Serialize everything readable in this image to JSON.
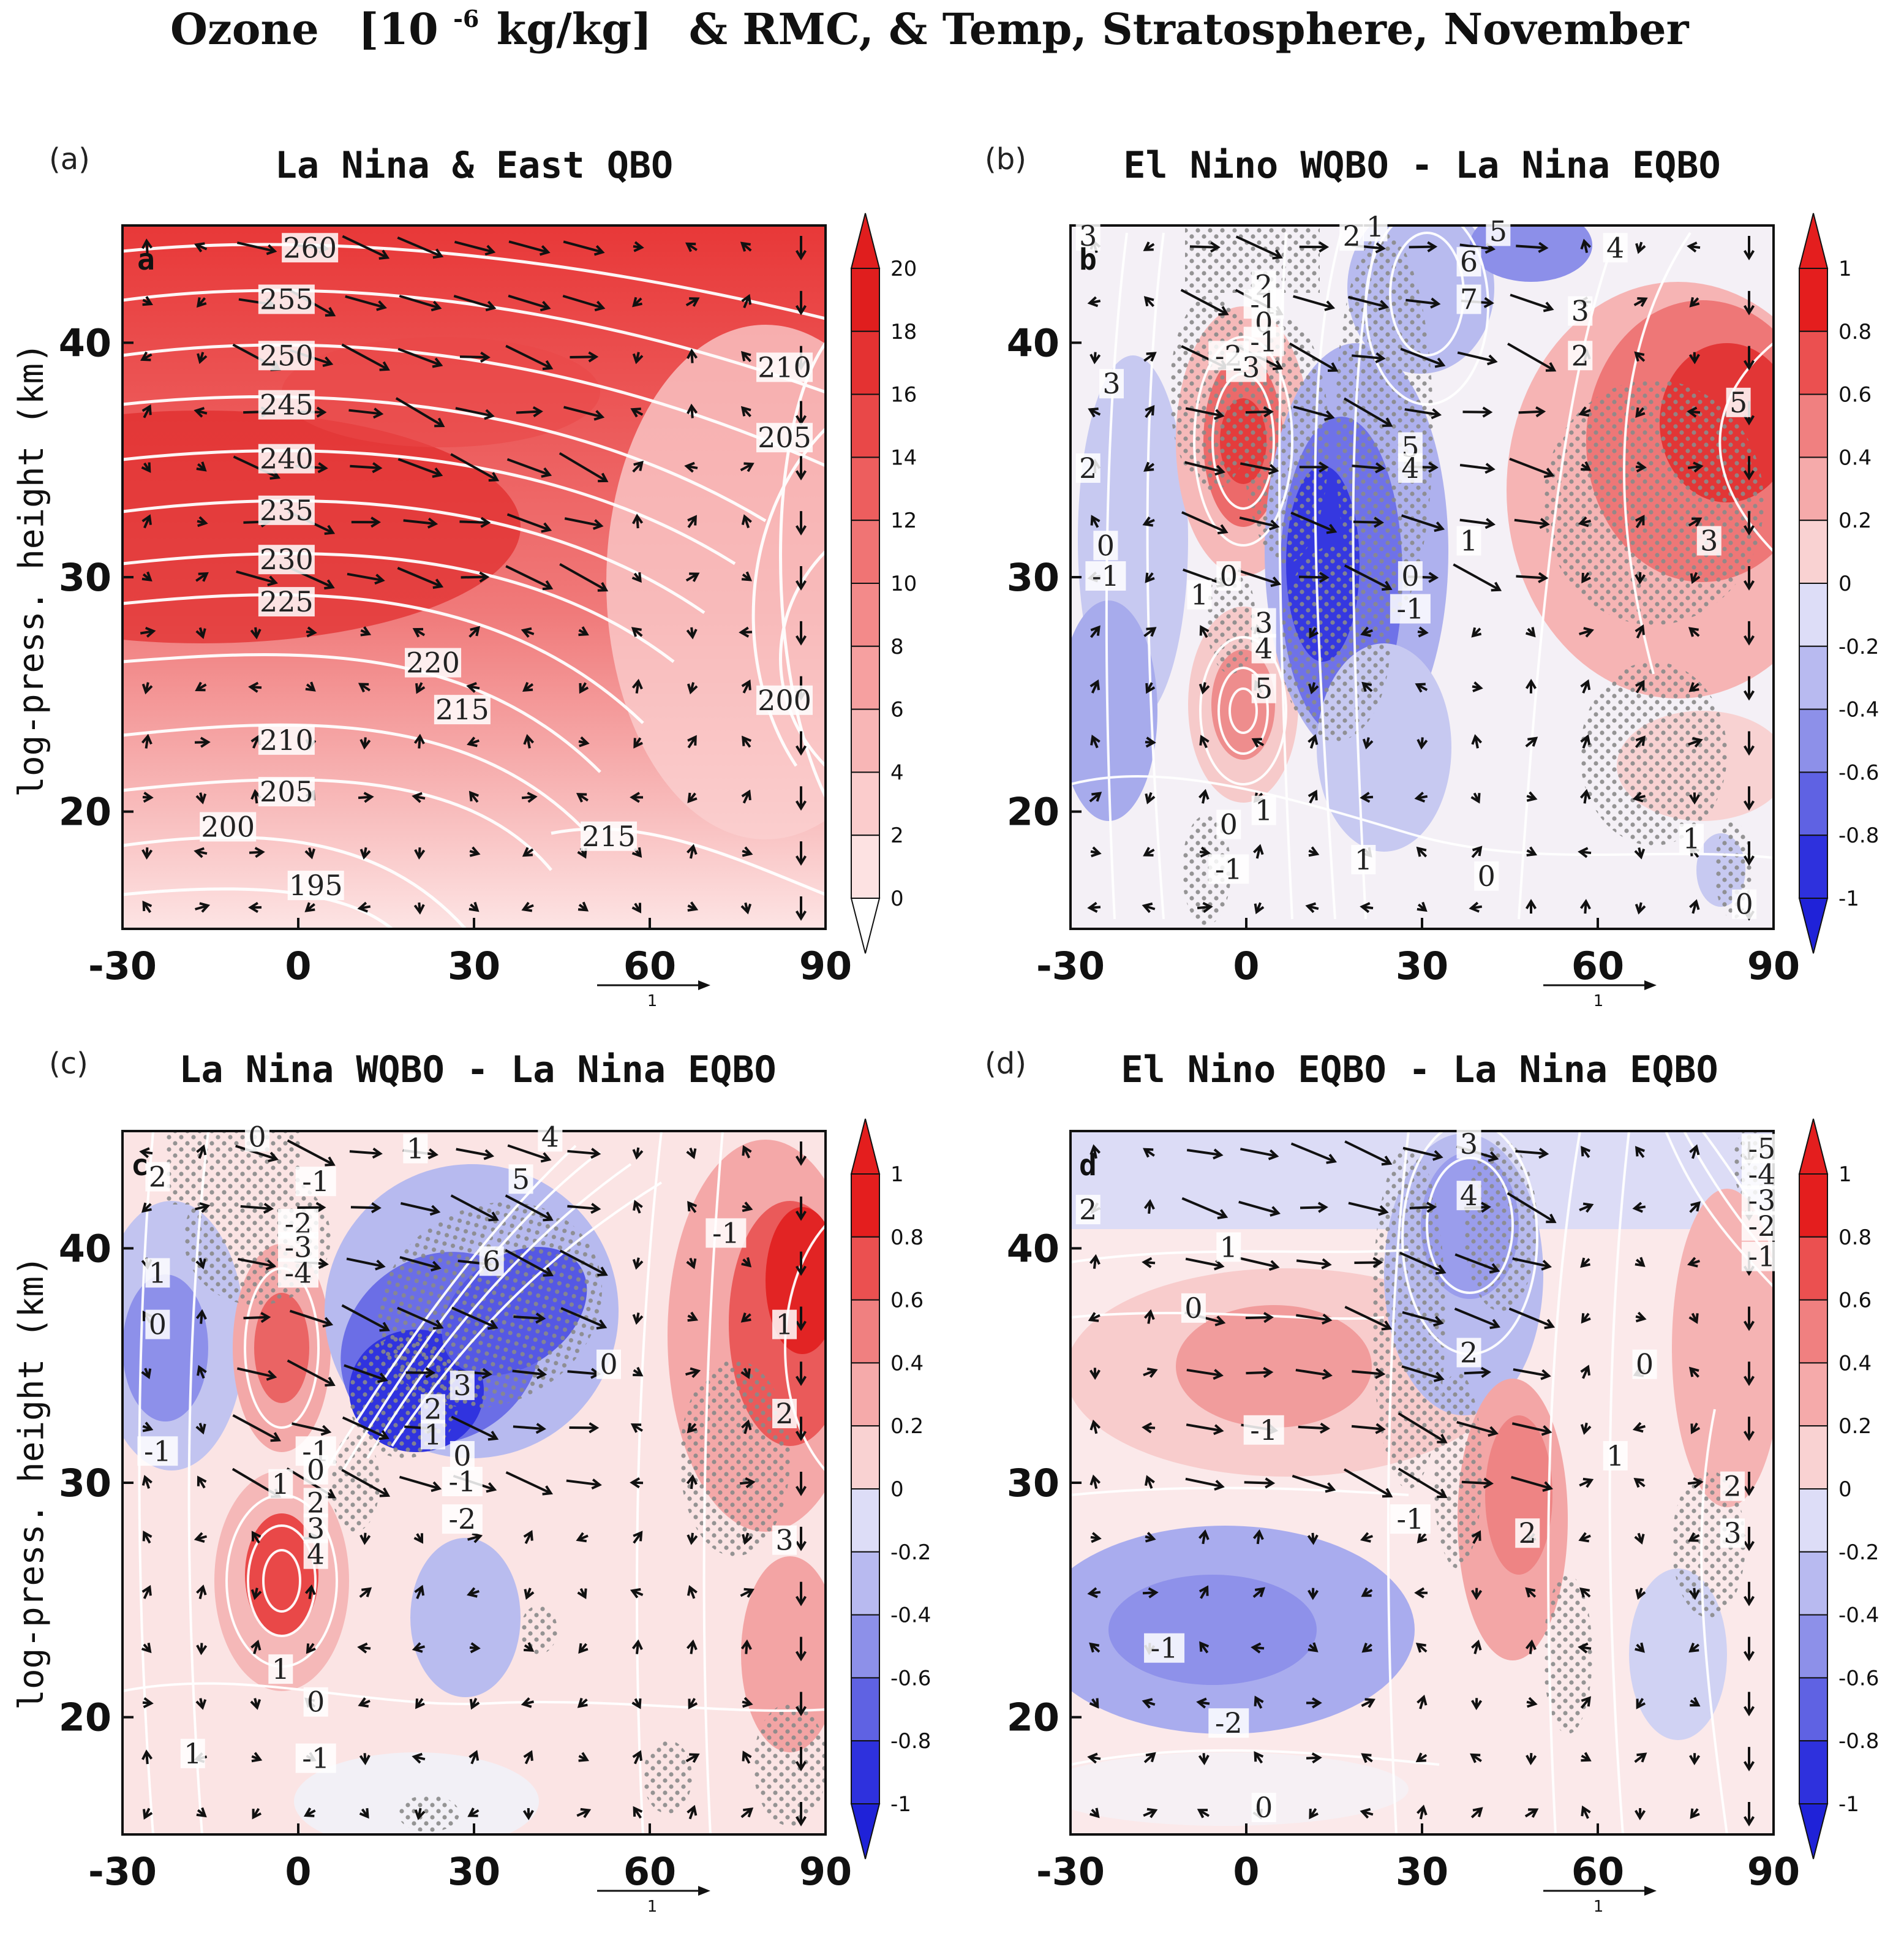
{
  "figure": {
    "title_main": "Ozone",
    "title_unit_prefix": "[10",
    "title_unit_exp": "-6",
    "title_unit_suffix": "kg/kg]",
    "title_rest": "& RMC, & Temp, Stratosphere, November",
    "ylabel": "log-press. height (km)",
    "vector_ref_label": "1"
  },
  "chart_data": [
    {
      "type": "heatmap",
      "panel_label": "(a)",
      "inner_label": "a",
      "title": "La Nina & East QBO",
      "x_ticks": [
        "-30",
        "0",
        "30",
        "60",
        "90"
      ],
      "y_ticks": [
        "20",
        "30",
        "40"
      ],
      "xlim": [
        -30,
        90
      ],
      "ylim": [
        15,
        45
      ],
      "colorbar": [
        "0",
        "2",
        "4",
        "6",
        "8",
        "10",
        "12",
        "14",
        "16",
        "18",
        "20"
      ],
      "contour_labels": [
        {
          "text": "260",
          "x": 2,
          "y": 44
        },
        {
          "text": "255",
          "x": -2,
          "y": 41.8
        },
        {
          "text": "250",
          "x": -2,
          "y": 39.4
        },
        {
          "text": "245",
          "x": -2,
          "y": 37.3
        },
        {
          "text": "240",
          "x": -2,
          "y": 35.0
        },
        {
          "text": "235",
          "x": -2,
          "y": 32.8
        },
        {
          "text": "230",
          "x": -2,
          "y": 30.7
        },
        {
          "text": "225",
          "x": -2,
          "y": 28.9
        },
        {
          "text": "220",
          "x": 23,
          "y": 26.3
        },
        {
          "text": "215",
          "x": 28,
          "y": 24.3
        },
        {
          "text": "210",
          "x": -2,
          "y": 23.0
        },
        {
          "text": "205",
          "x": -2,
          "y": 20.8
        },
        {
          "text": "200",
          "x": -12,
          "y": 19.3
        },
        {
          "text": "195",
          "x": 3,
          "y": 16.8
        },
        {
          "text": "215",
          "x": 53,
          "y": 18.9
        },
        {
          "text": "210",
          "x": 83,
          "y": 38.9
        },
        {
          "text": "205",
          "x": 83,
          "y": 35.9
        },
        {
          "text": "200",
          "x": 83,
          "y": 24.7
        }
      ]
    },
    {
      "type": "heatmap",
      "panel_label": "(b)",
      "inner_label": "b",
      "title": "El Nino WQBO - La Nina EQBO",
      "x_ticks": [
        "-30",
        "0",
        "30",
        "60",
        "90"
      ],
      "y_ticks": [
        "20",
        "30",
        "40"
      ],
      "xlim": [
        -30,
        90
      ],
      "ylim": [
        15,
        45
      ],
      "colorbar": [
        "1",
        "0.8",
        "0.6",
        "0.4",
        "0.2",
        "0",
        "-0.2",
        "-0.4",
        "-0.6",
        "-0.8",
        "-1"
      ],
      "contour_labels": [
        {
          "text": "3",
          "x": -27,
          "y": 44.5
        },
        {
          "text": "3",
          "x": -23,
          "y": 38.2
        },
        {
          "text": "2",
          "x": -27,
          "y": 34.6
        },
        {
          "text": "0",
          "x": -24,
          "y": 31.3
        },
        {
          "text": "-1",
          "x": -24,
          "y": 30.0
        },
        {
          "text": "1",
          "x": -8,
          "y": 29.2
        },
        {
          "text": "2",
          "x": 3,
          "y": 42.4
        },
        {
          "text": "-1",
          "x": 3,
          "y": 41.6
        },
        {
          "text": "0",
          "x": 3,
          "y": 40.8
        },
        {
          "text": "-1",
          "x": 3,
          "y": 40.0
        },
        {
          "text": "-2",
          "x": -3,
          "y": 39.4
        },
        {
          "text": "-3",
          "x": 0,
          "y": 38.9
        },
        {
          "text": "0",
          "x": -3,
          "y": 30.0
        },
        {
          "text": "3",
          "x": 3,
          "y": 28.0
        },
        {
          "text": "4",
          "x": 3,
          "y": 26.9
        },
        {
          "text": "5",
          "x": 3,
          "y": 25.2
        },
        {
          "text": "1",
          "x": 3,
          "y": 20.0
        },
        {
          "text": "0",
          "x": -3,
          "y": 19.4
        },
        {
          "text": "-1",
          "x": -3,
          "y": 17.5
        },
        {
          "text": "2",
          "x": 18,
          "y": 44.5
        },
        {
          "text": "1",
          "x": 22,
          "y": 44.9
        },
        {
          "text": "5",
          "x": 43,
          "y": 44.7
        },
        {
          "text": "6",
          "x": 38,
          "y": 43.4
        },
        {
          "text": "7",
          "x": 38,
          "y": 41.8
        },
        {
          "text": "4",
          "x": 63,
          "y": 44.0
        },
        {
          "text": "3",
          "x": 57,
          "y": 41.3
        },
        {
          "text": "2",
          "x": 57,
          "y": 39.4
        },
        {
          "text": "5",
          "x": 28,
          "y": 35.5
        },
        {
          "text": "4",
          "x": 28,
          "y": 34.6
        },
        {
          "text": "1",
          "x": 38,
          "y": 31.5
        },
        {
          "text": "0",
          "x": 28,
          "y": 30.0
        },
        {
          "text": "-1",
          "x": 28,
          "y": 28.6
        },
        {
          "text": "5",
          "x": 84,
          "y": 37.4
        },
        {
          "text": "3",
          "x": 79,
          "y": 31.5
        },
        {
          "text": "1",
          "x": 20,
          "y": 17.9
        },
        {
          "text": "0",
          "x": 41,
          "y": 17.2
        },
        {
          "text": "1",
          "x": 76,
          "y": 18.8
        },
        {
          "text": "0",
          "x": 85,
          "y": 16.0
        }
      ]
    },
    {
      "type": "heatmap",
      "panel_label": "(c)",
      "inner_label": "c",
      "title": "La Nina WQBO - La Nina EQBO",
      "x_ticks": [
        "-30",
        "0",
        "30",
        "60",
        "90"
      ],
      "y_ticks": [
        "20",
        "30",
        "40"
      ],
      "xlim": [
        -30,
        90
      ],
      "ylim": [
        15,
        45
      ],
      "colorbar": [
        "1",
        "0.8",
        "0.6",
        "0.4",
        "0.2",
        "0",
        "-0.2",
        "-0.4",
        "-0.6",
        "-0.8",
        "-1"
      ],
      "contour_labels": [
        {
          "text": "0",
          "x": -7,
          "y": 44.7
        },
        {
          "text": "2",
          "x": -24,
          "y": 43.0
        },
        {
          "text": "1",
          "x": -24,
          "y": 38.9
        },
        {
          "text": "0",
          "x": -24,
          "y": 36.7
        },
        {
          "text": "-1",
          "x": -24,
          "y": 31.3
        },
        {
          "text": "-1",
          "x": 3,
          "y": 42.8
        },
        {
          "text": "-2",
          "x": 0,
          "y": 41.0
        },
        {
          "text": "-3",
          "x": 0,
          "y": 40.0
        },
        {
          "text": "-4",
          "x": 0,
          "y": 38.9
        },
        {
          "text": "-1",
          "x": 3,
          "y": 31.3
        },
        {
          "text": "0",
          "x": 3,
          "y": 30.5
        },
        {
          "text": "1",
          "x": -3,
          "y": 29.9
        },
        {
          "text": "2",
          "x": 3,
          "y": 29.1
        },
        {
          "text": "3",
          "x": 3,
          "y": 28.0
        },
        {
          "text": "4",
          "x": 3,
          "y": 26.9
        },
        {
          "text": "1",
          "x": -3,
          "y": 22.0
        },
        {
          "text": "0",
          "x": 3,
          "y": 20.6
        },
        {
          "text": "1",
          "x": -18,
          "y": 18.4
        },
        {
          "text": "-1",
          "x": 3,
          "y": 18.2
        },
        {
          "text": "1",
          "x": 20,
          "y": 44.2
        },
        {
          "text": "4",
          "x": 43,
          "y": 44.7
        },
        {
          "text": "5",
          "x": 38,
          "y": 42.9
        },
        {
          "text": "6",
          "x": 33,
          "y": 39.4
        },
        {
          "text": "3",
          "x": 28,
          "y": 34.1
        },
        {
          "text": "2",
          "x": 23,
          "y": 33.1
        },
        {
          "text": "1",
          "x": 23,
          "y": 32.0
        },
        {
          "text": "0",
          "x": 28,
          "y": 31.1
        },
        {
          "text": "-1",
          "x": 28,
          "y": 30.0
        },
        {
          "text": "-2",
          "x": 28,
          "y": 28.4
        },
        {
          "text": "-1",
          "x": 73,
          "y": 40.6
        },
        {
          "text": "0",
          "x": 53,
          "y": 35.0
        },
        {
          "text": "1",
          "x": 83,
          "y": 36.7
        },
        {
          "text": "2",
          "x": 83,
          "y": 32.9
        },
        {
          "text": "3",
          "x": 83,
          "y": 27.5
        }
      ]
    },
    {
      "type": "heatmap",
      "panel_label": "(d)",
      "inner_label": "d",
      "title": "El Nino EQBO - La Nina EQBO",
      "x_ticks": [
        "-30",
        "0",
        "30",
        "60",
        "90"
      ],
      "y_ticks": [
        "20",
        "30",
        "40"
      ],
      "xlim": [
        -30,
        90
      ],
      "ylim": [
        15,
        45
      ],
      "colorbar": [
        "1",
        "0.8",
        "0.6",
        "0.4",
        "0.2",
        "0",
        "-0.2",
        "-0.4",
        "-0.6",
        "-0.8",
        "-1"
      ],
      "contour_labels": [
        {
          "text": "2",
          "x": -27,
          "y": 41.6
        },
        {
          "text": "1",
          "x": -3,
          "y": 40.0
        },
        {
          "text": "0",
          "x": -9,
          "y": 37.4
        },
        {
          "text": "-1",
          "x": 3,
          "y": 32.2
        },
        {
          "text": "-1",
          "x": 28,
          "y": 28.4
        },
        {
          "text": "-1",
          "x": -14,
          "y": 22.9
        },
        {
          "text": "-2",
          "x": -3,
          "y": 19.7
        },
        {
          "text": "0",
          "x": 3,
          "y": 16.1
        },
        {
          "text": "3",
          "x": 38,
          "y": 44.4
        },
        {
          "text": "4",
          "x": 38,
          "y": 42.2
        },
        {
          "text": "2",
          "x": 38,
          "y": 35.5
        },
        {
          "text": "0",
          "x": 68,
          "y": 35.0
        },
        {
          "text": "1",
          "x": 63,
          "y": 31.1
        },
        {
          "text": "2",
          "x": 48,
          "y": 27.8
        },
        {
          "text": "2",
          "x": 83,
          "y": 29.8
        },
        {
          "text": "3",
          "x": 83,
          "y": 27.8
        },
        {
          "text": "-5",
          "x": 88,
          "y": 44.2
        },
        {
          "text": "-4",
          "x": 88,
          "y": 43.1
        },
        {
          "text": "-3",
          "x": 88,
          "y": 42.0
        },
        {
          "text": "-2",
          "x": 88,
          "y": 40.9
        },
        {
          "text": "-1",
          "x": 88,
          "y": 39.6
        }
      ]
    }
  ]
}
